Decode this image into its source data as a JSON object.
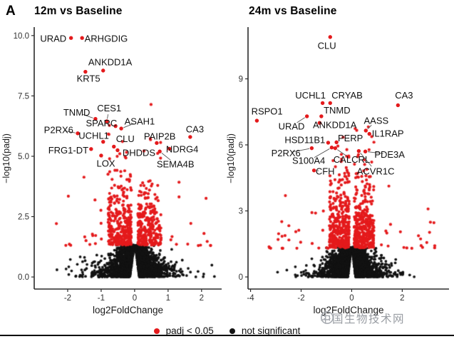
{
  "panel_label": "A",
  "watermark": {
    "text": "中国生物技术网",
    "color": "#999da3"
  },
  "colors": {
    "significant": "#e41a1c",
    "not_significant": "#121212",
    "axis": "#2b2b2b",
    "tick_text": "#333333",
    "gene_text": "#111111"
  },
  "chart_data": {
    "type": "scatter",
    "subtype": "volcano",
    "legend_position": "bottom",
    "legend": [
      {
        "label": "padj < 0.05",
        "color": "#e41a1c"
      },
      {
        "label": "not significant",
        "color": "#121212"
      }
    ],
    "plots": [
      {
        "title": "12m vs Baseline",
        "xlabel": "log2FoldChange",
        "ylabel": "−log10(padj)",
        "xlim": [
          -3.0,
          2.6
        ],
        "ylim": [
          -0.5,
          10.35
        ],
        "xticks": {
          "values": [
            -2,
            -1,
            0,
            1,
            2
          ],
          "labels": [
            "-2",
            "-1",
            "0",
            "1",
            "2"
          ]
        },
        "yticks": {
          "values": [
            0,
            2.5,
            5,
            7.5,
            10
          ],
          "labels": [
            "0.0",
            "2.5",
            "5.0",
            "7.5",
            "10.0"
          ]
        },
        "significance_threshold": 1.3,
        "labeled_genes": [
          {
            "gene": "URAD",
            "x": -1.9,
            "y": 9.9,
            "lx": -2.43,
            "ly": 9.88,
            "leader": false
          },
          {
            "gene": "ARHGDIG",
            "x": -1.57,
            "y": 9.9,
            "lx": -0.85,
            "ly": 9.88,
            "leader": false
          },
          {
            "gene": "ANKDD1A",
            "x": -0.94,
            "y": 8.55,
            "lx": -0.73,
            "ly": 8.9,
            "leader": false
          },
          {
            "gene": "KRT5",
            "x": -1.47,
            "y": 8.5,
            "lx": -1.38,
            "ly": 8.22,
            "leader": false
          },
          {
            "gene": "TNMD",
            "x": -1.17,
            "y": 6.55,
            "lx": -1.73,
            "ly": 6.82,
            "leader": true
          },
          {
            "gene": "CES1",
            "x": -0.83,
            "y": 6.45,
            "lx": -0.76,
            "ly": 7.0,
            "leader": true
          },
          {
            "gene": "SPARC",
            "x": -0.57,
            "y": 6.25,
            "lx": -0.99,
            "ly": 6.38,
            "leader": false
          },
          {
            "gene": "ASAH1",
            "x": -0.4,
            "y": 6.15,
            "lx": 0.15,
            "ly": 6.45,
            "leader": true
          },
          {
            "gene": "P2RX6",
            "x": -1.7,
            "y": 5.95,
            "lx": -2.27,
            "ly": 6.1,
            "leader": true
          },
          {
            "gene": "UCHL1",
            "x": -0.94,
            "y": 5.6,
            "lx": -1.22,
            "ly": 5.86,
            "leader": false
          },
          {
            "gene": "CLU",
            "x": -0.62,
            "y": 5.4,
            "lx": -0.28,
            "ly": 5.72,
            "leader": false
          },
          {
            "gene": "PAIP2B",
            "x": 0.66,
            "y": 5.55,
            "lx": 0.75,
            "ly": 5.82,
            "leader": false
          },
          {
            "gene": "CA3",
            "x": 1.66,
            "y": 5.8,
            "lx": 1.8,
            "ly": 6.12,
            "leader": false
          },
          {
            "gene": "FRG1-DT",
            "x": -1.3,
            "y": 5.3,
            "lx": -1.98,
            "ly": 5.25,
            "leader": false
          },
          {
            "gene": "DHDDS",
            "x": -0.51,
            "y": 5.25,
            "lx": 0.13,
            "ly": 5.14,
            "leader": false
          },
          {
            "gene": "NDRG4",
            "x": 1.04,
            "y": 5.31,
            "lx": 1.42,
            "ly": 5.3,
            "leader": false
          },
          {
            "gene": "LOX",
            "x": -1.0,
            "y": 5.03,
            "lx": -0.86,
            "ly": 4.7,
            "leader": true
          },
          {
            "gene": "SEMA4B",
            "x": 0.75,
            "y": 5.2,
            "lx": 1.22,
            "ly": 4.68,
            "leader": true
          }
        ],
        "background_cloud": {
          "seed": 12,
          "n_not_significant": 2600,
          "n_significant": 640,
          "ns_y_max": 1.32,
          "notch_halfwidth": 0.13,
          "x_scale_bottom": 0.38,
          "x_scale_top": 0.12,
          "x_clip": 2.45,
          "sig_gap": 0.1,
          "sig_x_span": 0.7,
          "sig_y_mean": 1.0,
          "sig_y_cap": 7.2,
          "wide_fraction": 0.055,
          "wide_x_max": 2.35
        }
      },
      {
        "title": "24m vs Baseline",
        "xlabel": "log2FoldChange",
        "ylabel": "−log10(padj)",
        "xlim": [
          -4.1,
          3.85
        ],
        "ylim": [
          -0.55,
          11.35
        ],
        "xticks": {
          "values": [
            -4,
            -2,
            0,
            2
          ],
          "labels": [
            "-4",
            "-2",
            "0",
            "2"
          ]
        },
        "yticks": {
          "values": [
            0,
            3,
            6,
            9
          ],
          "labels": [
            "0",
            "3",
            "6",
            "9"
          ]
        },
        "significance_threshold": 1.3,
        "labeled_genes": [
          {
            "gene": "CLU",
            "x": -0.85,
            "y": 10.9,
            "lx": -0.98,
            "ly": 10.5,
            "leader": false
          },
          {
            "gene": "UCHL1",
            "x": -1.15,
            "y": 7.9,
            "lx": -1.63,
            "ly": 8.25,
            "leader": false
          },
          {
            "gene": "CRYAB",
            "x": -0.85,
            "y": 7.9,
            "lx": -0.18,
            "ly": 8.25,
            "leader": false
          },
          {
            "gene": "CA3",
            "x": 1.83,
            "y": 7.8,
            "lx": 2.07,
            "ly": 8.25,
            "leader": false
          },
          {
            "gene": "RSPO1",
            "x": -3.75,
            "y": 7.1,
            "lx": -3.35,
            "ly": 7.52,
            "leader": false
          },
          {
            "gene": "TNMD",
            "x": -1.2,
            "y": 7.3,
            "lx": -0.58,
            "ly": 7.57,
            "leader": false
          },
          {
            "gene": "URAD",
            "x": -1.77,
            "y": 7.3,
            "lx": -2.38,
            "ly": 6.85,
            "leader": true
          },
          {
            "gene": "ANKDD1A",
            "x": -1.27,
            "y": 7.0,
            "lx": -0.67,
            "ly": 6.9,
            "leader": false
          },
          {
            "gene": "AASS",
            "x": 0.56,
            "y": 6.65,
            "lx": 0.97,
            "ly": 7.1,
            "leader": true
          },
          {
            "gene": "IL1RAP",
            "x": 0.7,
            "y": 6.5,
            "lx": 1.43,
            "ly": 6.52,
            "leader": false
          },
          {
            "gene": "HSD11B1",
            "x": -0.93,
            "y": 6.1,
            "lx": -1.85,
            "ly": 6.22,
            "leader": false
          },
          {
            "gene": "PERP",
            "x": -0.6,
            "y": 6.12,
            "lx": -0.05,
            "ly": 6.3,
            "leader": false
          },
          {
            "gene": "P2RX6",
            "x": -1.58,
            "y": 5.85,
            "lx": -2.6,
            "ly": 5.62,
            "leader": true
          },
          {
            "gene": "PDE3A",
            "x": 0.54,
            "y": 5.7,
            "lx": 1.5,
            "ly": 5.57,
            "leader": true
          },
          {
            "gene": "S100A4",
            "x": -0.79,
            "y": 5.88,
            "lx": -1.7,
            "ly": 5.28,
            "leader": true
          },
          {
            "gene": "CALCRL",
            "x": -0.65,
            "y": 5.85,
            "lx": 0.0,
            "ly": 5.34,
            "leader": true
          },
          {
            "gene": "ACVR1C",
            "x": 0.28,
            "y": 5.72,
            "lx": 0.95,
            "ly": 4.8,
            "leader": true
          },
          {
            "gene": "CFH",
            "x": -1.49,
            "y": 4.84,
            "lx": -1.05,
            "ly": 4.8,
            "leader": true
          }
        ],
        "background_cloud": {
          "seed": 77,
          "n_not_significant": 3000,
          "n_significant": 820,
          "ns_y_max": 1.35,
          "notch_halfwidth": 0.14,
          "x_scale_bottom": 0.43,
          "x_scale_top": 0.13,
          "x_clip": 3.05,
          "sig_gap": 0.1,
          "sig_x_span": 0.78,
          "sig_y_mean": 1.05,
          "sig_y_cap": 6.8,
          "wide_fraction": 0.06,
          "wide_x_max": 3.3
        }
      }
    ]
  }
}
